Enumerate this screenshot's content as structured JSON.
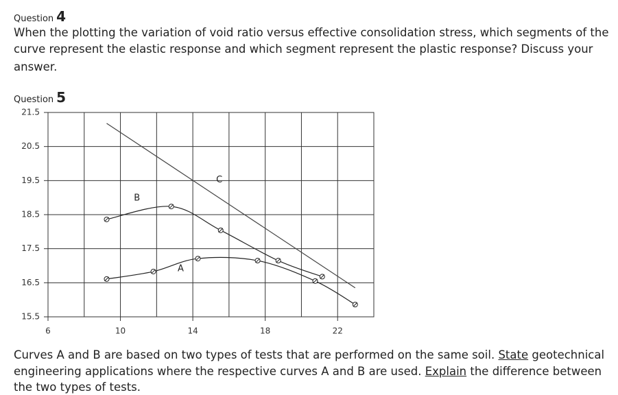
{
  "question4": {
    "label": "Question",
    "number": "4",
    "text": [
      "When the plotting the variation of void ratio versus effective consolidation stress, which segments of the",
      "curve represent the elastic response and which segment represent the plastic response?  Discuss your",
      "answer."
    ]
  },
  "question5": {
    "label": "Question",
    "number": "5",
    "chart_data": {
      "type": "line",
      "xlim": [
        6,
        24
      ],
      "xticks": [
        6,
        10,
        14,
        18,
        22
      ],
      "xgrid": [
        8,
        12,
        16,
        20,
        24
      ],
      "ylim": [
        15.5,
        21.5
      ],
      "yticks": [
        15.5,
        16.5,
        17.5,
        18.5,
        19.5,
        20.5,
        21.5
      ],
      "grid": true,
      "series": [
        {
          "name": "A",
          "color": "#222222",
          "x": [
            9.24,
            11.82,
            14.28,
            17.58,
            20.76,
            22.97
          ],
          "values": [
            16.61,
            16.83,
            17.21,
            17.15,
            16.55,
            15.86
          ]
        },
        {
          "name": "B",
          "color": "#222222",
          "x": [
            9.24,
            12.81,
            15.54,
            18.72,
            21.15
          ],
          "values": [
            18.36,
            18.74,
            18.04,
            17.15,
            16.68
          ]
        },
        {
          "name": "C",
          "color": "#444444",
          "x": [
            9.24,
            22.97
          ],
          "values": [
            21.18,
            16.35
          ]
        }
      ]
    },
    "text": [
      [
        "Curves A and B are based on two types of tests that are performed on the same soil.  ",
        "State",
        " geotechnical"
      ],
      [
        "engineering applications where the respective curves A and B are used.  ",
        "Explain",
        " the difference between"
      ],
      [
        "the two types of tests."
      ]
    ]
  }
}
